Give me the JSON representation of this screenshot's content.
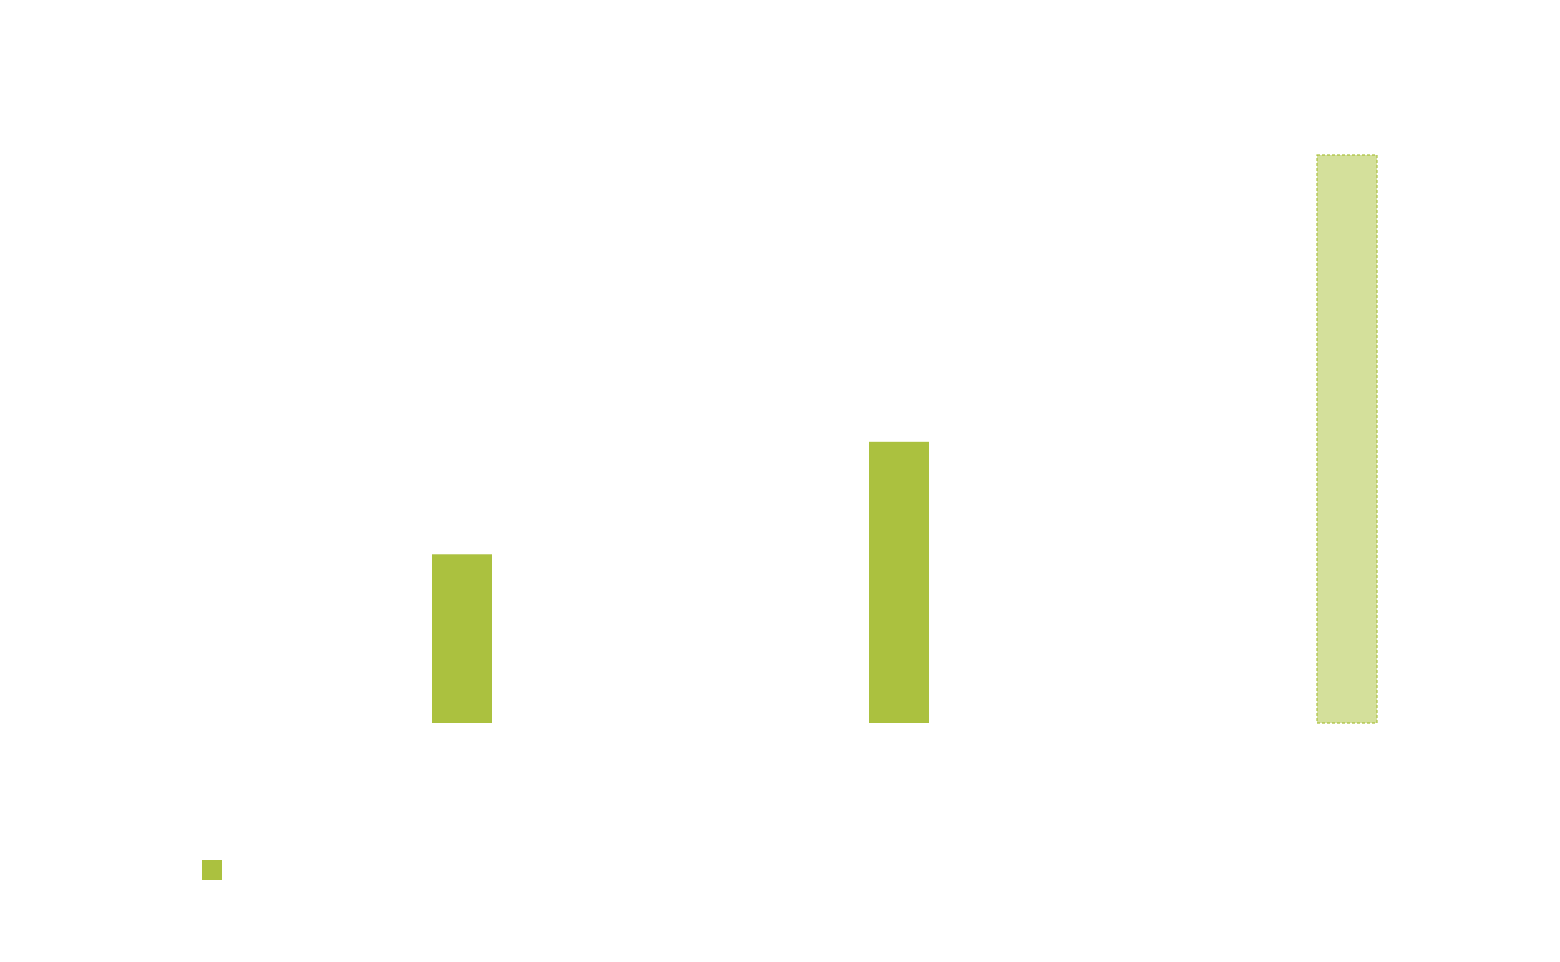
{
  "colors": {
    "bar_fill": "#abc13f",
    "projected_fill": "#d4e09b",
    "projected_stroke": "#abc13f",
    "background": "#ffffff"
  },
  "chart_data": {
    "type": "bar",
    "categories": [
      "",
      "",
      ""
    ],
    "series": [
      {
        "values": [
          30,
          50,
          101
        ],
        "styles": [
          "solid",
          "solid",
          "dashed-light"
        ]
      }
    ],
    "ylim": [
      0,
      101
    ],
    "grid": false,
    "legend": {
      "placement": "bottom-left",
      "entries": [
        {
          "label": "",
          "color": "#abc13f"
        }
      ]
    }
  }
}
